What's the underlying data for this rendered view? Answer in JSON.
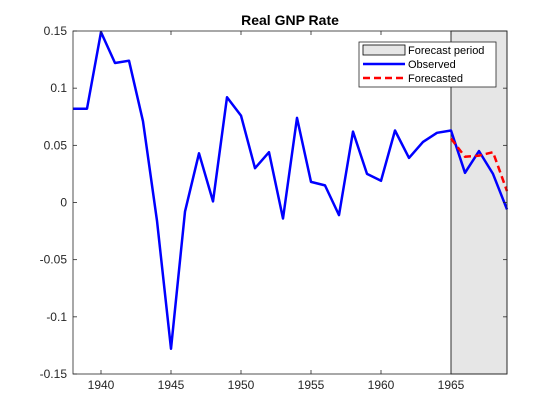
{
  "chart_data": {
    "type": "line",
    "title": "Real GNP Rate",
    "xlabel": "",
    "ylabel": "",
    "xlim": [
      1938,
      1969
    ],
    "ylim": [
      -0.15,
      0.15
    ],
    "x_ticks": [
      1940,
      1945,
      1950,
      1955,
      1960,
      1965
    ],
    "x_tick_labels": [
      "1940",
      "1945",
      "1950",
      "1955",
      "1960",
      "1965"
    ],
    "y_ticks": [
      -0.15,
      -0.1,
      -0.05,
      0,
      0.05,
      0.1,
      0.15
    ],
    "y_tick_labels": [
      "-0.15",
      "-0.1",
      "-0.05",
      "0",
      "0.05",
      "0.1",
      "0.15"
    ],
    "grid": false,
    "legend_position": "top-right",
    "forecast_period": {
      "x_start": 1965,
      "x_end": 1969,
      "label": "Forecast period",
      "color": "#e6e6e6"
    },
    "series": [
      {
        "name": "Observed",
        "color": "#0000ff",
        "style": "solid",
        "x": [
          1938,
          1939,
          1940,
          1941,
          1942,
          1943,
          1944,
          1945,
          1946,
          1947,
          1948,
          1949,
          1950,
          1951,
          1952,
          1953,
          1954,
          1955,
          1956,
          1957,
          1958,
          1959,
          1960,
          1961,
          1962,
          1963,
          1964,
          1965,
          1966,
          1967,
          1968,
          1969
        ],
        "values": [
          0.082,
          0.082,
          0.149,
          0.122,
          0.124,
          0.071,
          -0.016,
          -0.128,
          -0.008,
          0.043,
          0.001,
          0.092,
          0.076,
          0.03,
          0.044,
          -0.014,
          0.074,
          0.018,
          0.015,
          -0.011,
          0.062,
          0.025,
          0.019,
          0.063,
          0.039,
          0.053,
          0.061,
          0.063,
          0.026,
          0.045,
          0.025,
          -0.006
        ]
      },
      {
        "name": "Forecasted",
        "color": "#ff0000",
        "style": "dashed",
        "x": [
          1965,
          1966,
          1967,
          1968,
          1969
        ],
        "values": [
          0.056,
          0.04,
          0.041,
          0.044,
          0.01
        ]
      }
    ]
  }
}
